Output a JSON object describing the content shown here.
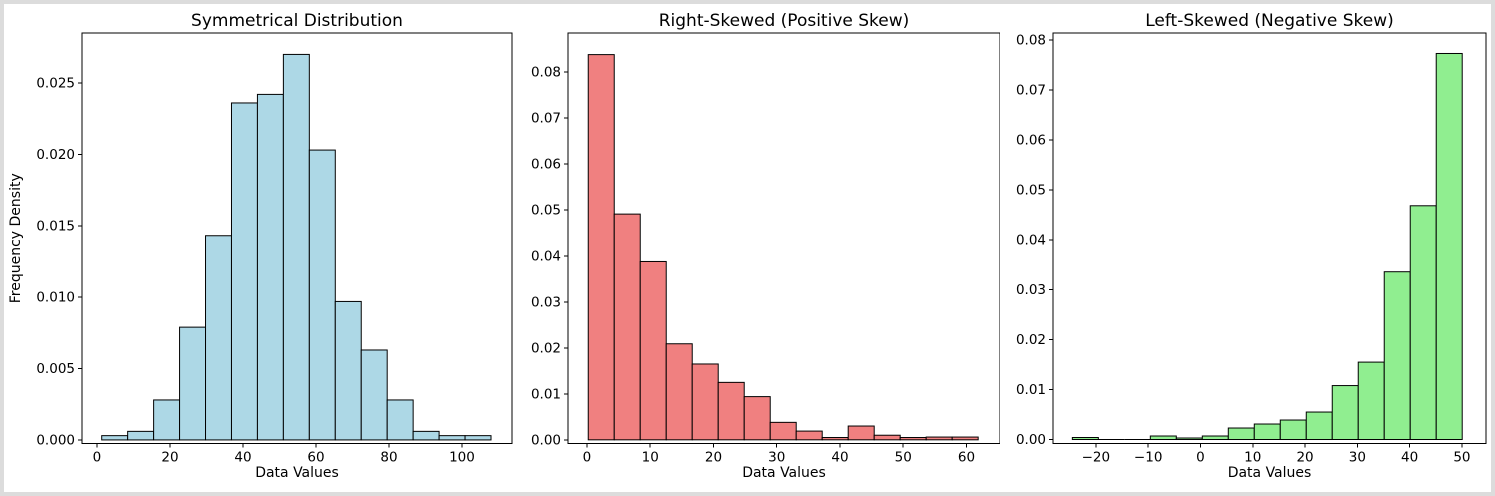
{
  "figure": {
    "background": "#ffffff",
    "frame_color": "#dcdcdc",
    "text_color": "#000000",
    "spine_color": "#000000"
  },
  "chart_data": [
    {
      "type": "bar",
      "subtype": "histogram",
      "title": "Symmetrical Distribution",
      "xlabel": "Data Values",
      "ylabel": "Frequency Density",
      "bar_color": "#ADD8E6",
      "edge_color": "#000000",
      "grid": false,
      "legend": null,
      "bin_start": 1.3,
      "bin_width": 7.11,
      "values": [
        0.0003,
        0.0006,
        0.0028,
        0.0079,
        0.0143,
        0.0236,
        0.0242,
        0.027,
        0.0203,
        0.0097,
        0.0063,
        0.0028,
        0.0006,
        0.0003,
        0.0003
      ],
      "xlim": [
        -4.1,
        113.7
      ],
      "ylim": [
        -0.00025,
        0.0285
      ],
      "xticks": [
        {
          "v": 0,
          "label": "0"
        },
        {
          "v": 20,
          "label": "20"
        },
        {
          "v": 40,
          "label": "40"
        },
        {
          "v": 60,
          "label": "60"
        },
        {
          "v": 80,
          "label": "80"
        },
        {
          "v": 100,
          "label": "100"
        }
      ],
      "yticks": [
        {
          "v": 0.0,
          "label": "0.000"
        },
        {
          "v": 0.005,
          "label": "0.005"
        },
        {
          "v": 0.01,
          "label": "0.010"
        },
        {
          "v": 0.015,
          "label": "0.015"
        },
        {
          "v": 0.02,
          "label": "0.020"
        },
        {
          "v": 0.025,
          "label": "0.025"
        }
      ]
    },
    {
      "type": "bar",
      "subtype": "histogram",
      "title": "Right-Skewed (Positive Skew)",
      "xlabel": "Data Values",
      "ylabel": "",
      "bar_color": "#F08080",
      "edge_color": "#000000",
      "grid": false,
      "legend": null,
      "bin_start": 0.2,
      "bin_width": 4.11,
      "values": [
        0.0838,
        0.0491,
        0.0388,
        0.0209,
        0.0165,
        0.0125,
        0.0094,
        0.0038,
        0.0019,
        0.0005,
        0.003,
        0.001,
        0.0005,
        0.0006,
        0.0006
      ],
      "xlim": [
        -3.0,
        65.3
      ],
      "ylim": [
        -0.0008,
        0.0885
      ],
      "xticks": [
        {
          "v": 0,
          "label": "0"
        },
        {
          "v": 10,
          "label": "10"
        },
        {
          "v": 20,
          "label": "20"
        },
        {
          "v": 30,
          "label": "30"
        },
        {
          "v": 40,
          "label": "40"
        },
        {
          "v": 50,
          "label": "50"
        },
        {
          "v": 60,
          "label": "60"
        }
      ],
      "yticks": [
        {
          "v": 0.0,
          "label": "0.00"
        },
        {
          "v": 0.01,
          "label": "0.01"
        },
        {
          "v": 0.02,
          "label": "0.02"
        },
        {
          "v": 0.03,
          "label": "0.03"
        },
        {
          "v": 0.04,
          "label": "0.04"
        },
        {
          "v": 0.05,
          "label": "0.05"
        },
        {
          "v": 0.06,
          "label": "0.06"
        },
        {
          "v": 0.07,
          "label": "0.07"
        },
        {
          "v": 0.08,
          "label": "0.08"
        }
      ]
    },
    {
      "type": "bar",
      "subtype": "histogram",
      "title": "Left-Skewed (Negative Skew)",
      "xlabel": "Data Values",
      "ylabel": "",
      "bar_color": "#90EE90",
      "edge_color": "#000000",
      "grid": false,
      "legend": null,
      "bin_start": -24.5,
      "bin_width": 4.97,
      "values": [
        0.0004,
        0,
        0,
        0.0007,
        0.0003,
        0.0007,
        0.0023,
        0.0031,
        0.0039,
        0.0055,
        0.0108,
        0.0155,
        0.0336,
        0.0468,
        0.0773
      ],
      "xlim": [
        -28.2,
        54.6
      ],
      "ylim": [
        -0.0008,
        0.0814
      ],
      "xticks": [
        {
          "v": -20,
          "label": "−20"
        },
        {
          "v": -10,
          "label": "−10"
        },
        {
          "v": 0,
          "label": "0"
        },
        {
          "v": 10,
          "label": "10"
        },
        {
          "v": 20,
          "label": "20"
        },
        {
          "v": 30,
          "label": "30"
        },
        {
          "v": 40,
          "label": "40"
        },
        {
          "v": 50,
          "label": "50"
        }
      ],
      "yticks": [
        {
          "v": 0.0,
          "label": "0.00"
        },
        {
          "v": 0.01,
          "label": "0.01"
        },
        {
          "v": 0.02,
          "label": "0.02"
        },
        {
          "v": 0.03,
          "label": "0.03"
        },
        {
          "v": 0.04,
          "label": "0.04"
        },
        {
          "v": 0.05,
          "label": "0.05"
        },
        {
          "v": 0.06,
          "label": "0.06"
        },
        {
          "v": 0.07,
          "label": "0.07"
        },
        {
          "v": 0.08,
          "label": "0.08"
        }
      ]
    }
  ]
}
